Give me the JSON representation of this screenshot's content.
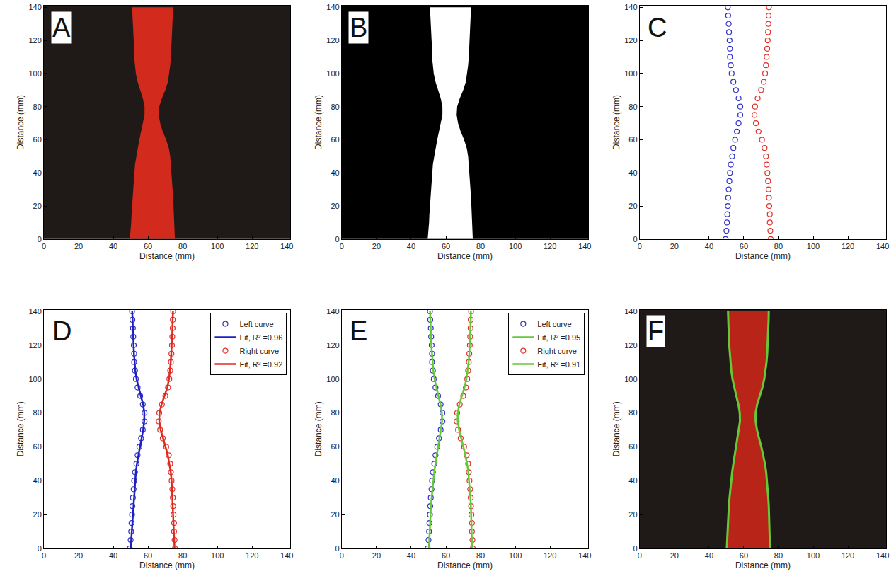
{
  "chart_data": [
    {
      "type": "photo",
      "title": "A",
      "xlabel": "Distance (mm)",
      "ylabel": "Distance (mm)",
      "xlim": [
        0,
        142
      ],
      "ylim": [
        0,
        141
      ],
      "xticks": [
        0,
        20,
        40,
        60,
        80,
        100,
        120,
        140
      ],
      "yticks": [
        0,
        20,
        40,
        60,
        80,
        100,
        120,
        140
      ],
      "color": "#d22a1c",
      "y": [
        0,
        5,
        10,
        15,
        20,
        25,
        30,
        35,
        40,
        45,
        50,
        55,
        60,
        65,
        70,
        75,
        80,
        85,
        90,
        95,
        100,
        105,
        110,
        115,
        120,
        125,
        130,
        135,
        140
      ],
      "series": [
        {
          "values": [
            49.5,
            50,
            50.3,
            50.5,
            50.8,
            51,
            51.3,
            51.7,
            52,
            52.5,
            53.3,
            54,
            55,
            56,
            57,
            58,
            58,
            57,
            55.5,
            54,
            53,
            52.5,
            52,
            52,
            51.8,
            51.5,
            51.3,
            51,
            50.8
          ]
        },
        {
          "values": [
            75.5,
            75.3,
            75,
            75,
            74.7,
            74.5,
            74.3,
            74,
            73.6,
            73.2,
            72.8,
            72,
            70.5,
            68.5,
            67,
            66.2,
            66.5,
            68,
            70,
            71.5,
            72.3,
            72.8,
            73.2,
            73.5,
            73.8,
            74,
            74.2,
            74.3,
            74.5
          ]
        }
      ]
    },
    {
      "type": "mask",
      "title": "B",
      "xlabel": "Distance (mm)",
      "ylabel": "Distance (mm)",
      "xlim": [
        0,
        142
      ],
      "ylim": [
        0,
        141
      ],
      "xticks": [
        0,
        20,
        40,
        60,
        80,
        100,
        120,
        140
      ],
      "yticks": [
        0,
        20,
        40,
        60,
        80,
        100,
        120,
        140
      ],
      "color": "#ffffff",
      "y": [
        0,
        5,
        10,
        15,
        20,
        25,
        30,
        35,
        40,
        45,
        50,
        55,
        60,
        65,
        70,
        75,
        80,
        85,
        90,
        95,
        100,
        105,
        110,
        115,
        120,
        125,
        130,
        135,
        140
      ],
      "series": [
        {
          "values": [
            49.5,
            50,
            50.3,
            50.5,
            50.8,
            51,
            51.3,
            51.7,
            52,
            52.5,
            53.3,
            54,
            55,
            56,
            57,
            58,
            58,
            57,
            55.5,
            54,
            53,
            52.5,
            52,
            52,
            51.8,
            51.5,
            51.3,
            51,
            50.8
          ]
        },
        {
          "values": [
            75.5,
            75.3,
            75,
            75,
            74.7,
            74.5,
            74.3,
            74,
            73.6,
            73.2,
            72.8,
            72,
            70.5,
            68.5,
            67,
            66.2,
            66.5,
            68,
            70,
            71.5,
            72.3,
            72.8,
            73.2,
            73.5,
            73.8,
            74,
            74.2,
            74.3,
            74.5
          ]
        }
      ]
    },
    {
      "type": "scatter",
      "title": "C",
      "xlabel": "Distance (mm)",
      "ylabel": "Distance (mm)",
      "xlim": [
        0,
        142
      ],
      "ylim": [
        0,
        141
      ],
      "xticks": [
        0,
        20,
        40,
        60,
        80,
        100,
        120,
        140
      ],
      "yticks": [
        0,
        20,
        40,
        60,
        80,
        100,
        120,
        140
      ],
      "y": [
        0,
        5,
        10,
        15,
        20,
        25,
        30,
        35,
        40,
        45,
        50,
        55,
        60,
        65,
        70,
        75,
        80,
        85,
        90,
        95,
        100,
        105,
        110,
        115,
        120,
        125,
        130,
        135,
        140
      ],
      "series": [
        {
          "color": "#3030c8",
          "marker": "circle-open",
          "values": [
            49.5,
            50,
            50.3,
            50.5,
            50.8,
            51,
            51.3,
            51.7,
            52,
            52.5,
            53.3,
            54,
            55,
            56,
            57,
            58,
            58,
            57,
            55.5,
            54,
            53,
            52.5,
            52,
            52,
            51.8,
            51.5,
            51.3,
            51,
            50.8
          ]
        },
        {
          "color": "#e0302a",
          "marker": "circle-open",
          "values": [
            75.5,
            75.3,
            75,
            75,
            74.7,
            74.5,
            74.3,
            74,
            73.6,
            73.2,
            72.8,
            72,
            70.5,
            68.5,
            67,
            66.2,
            66.5,
            68,
            70,
            71.5,
            72.3,
            72.8,
            73.2,
            73.5,
            73.8,
            74,
            74.2,
            74.3,
            74.5
          ]
        }
      ]
    },
    {
      "type": "scatter",
      "title": "D",
      "xlabel": "Distance (mm)",
      "ylabel": "Distance (mm)",
      "xlim": [
        0,
        142
      ],
      "ylim": [
        0,
        141
      ],
      "xticks": [
        0,
        20,
        40,
        60,
        80,
        100,
        120,
        140
      ],
      "yticks": [
        0,
        20,
        40,
        60,
        80,
        100,
        120,
        140
      ],
      "legend": "top right",
      "y": [
        0,
        5,
        10,
        15,
        20,
        25,
        30,
        35,
        40,
        45,
        50,
        55,
        60,
        65,
        70,
        75,
        80,
        85,
        90,
        95,
        100,
        105,
        110,
        115,
        120,
        125,
        130,
        135,
        140
      ],
      "series": [
        {
          "name": "Left curve",
          "color": "#3030c8",
          "marker": "circle-open",
          "values": [
            49.5,
            50,
            50.3,
            50.5,
            50.8,
            51,
            51.3,
            51.7,
            52,
            52.5,
            53.3,
            54,
            55,
            56,
            57,
            58,
            58,
            57,
            55.5,
            54,
            53,
            52.5,
            52,
            52,
            51.8,
            51.5,
            51.3,
            51,
            50.8
          ]
        },
        {
          "name": "Fit, R² =0.96",
          "color": "#2020c0",
          "line_style": "solid",
          "values": [
            50,
            50.3,
            50.6,
            50.9,
            51.2,
            51.5,
            51.8,
            52.1,
            52.5,
            53,
            53.6,
            54.4,
            55.3,
            56.3,
            57.2,
            57.8,
            57.9,
            57.2,
            55.9,
            54.5,
            53.4,
            52.7,
            52.2,
            51.9,
            51.7,
            51.5,
            51.3,
            51.1,
            50.9
          ]
        },
        {
          "name": "Right curve",
          "color": "#e0302a",
          "marker": "circle-open",
          "values": [
            75.5,
            75.3,
            75,
            75,
            74.7,
            74.5,
            74.3,
            74,
            73.6,
            73.2,
            72.8,
            72,
            70.5,
            68.5,
            67,
            66.2,
            66.5,
            68,
            70,
            71.5,
            72.3,
            72.8,
            73.2,
            73.5,
            73.8,
            74,
            74.2,
            74.3,
            74.5
          ]
        },
        {
          "name": "Fit, R² =0.92",
          "color": "#e02a20",
          "line_style": "solid",
          "values": [
            75.3,
            75.1,
            75,
            74.9,
            74.7,
            74.5,
            74.3,
            74,
            73.6,
            73.1,
            72.4,
            71.4,
            70.1,
            68.6,
            67.3,
            66.5,
            66.6,
            67.8,
            69.6,
            71.1,
            72.1,
            72.7,
            73.1,
            73.4,
            73.7,
            73.9,
            74.1,
            74.2,
            74.4
          ]
        }
      ]
    },
    {
      "type": "scatter",
      "title": "E",
      "xlabel": "Distance (mm)",
      "ylabel": "Distance (mm)",
      "xlim": [
        0,
        142
      ],
      "ylim": [
        0,
        141
      ],
      "xticks": [
        0,
        20,
        40,
        60,
        80,
        100,
        120,
        140
      ],
      "yticks": [
        0,
        20,
        40,
        60,
        80,
        100,
        120,
        140
      ],
      "legend": "top right",
      "y": [
        0,
        5,
        10,
        15,
        20,
        25,
        30,
        35,
        40,
        45,
        50,
        55,
        60,
        65,
        70,
        75,
        80,
        85,
        90,
        95,
        100,
        105,
        110,
        115,
        120,
        125,
        130,
        135,
        140
      ],
      "series": [
        {
          "name": "Left curve",
          "color": "#3030c8",
          "marker": "circle-open",
          "values": [
            49.5,
            50,
            50.3,
            50.5,
            50.8,
            51,
            51.3,
            51.7,
            52,
            52.5,
            53.3,
            54,
            55,
            56,
            57,
            58,
            58,
            57,
            55.5,
            54,
            53,
            52.5,
            52,
            52,
            51.8,
            51.5,
            51.3,
            51,
            50.8
          ]
        },
        {
          "name": "Fit, R² =0.95",
          "color": "#66c836",
          "line_style": "solid",
          "values": [
            50.2,
            50.4,
            50.6,
            50.8,
            51.1,
            51.4,
            51.8,
            52.2,
            52.7,
            53.3,
            54,
            54.8,
            55.6,
            56.5,
            57.3,
            57.8,
            57.7,
            56.9,
            55.7,
            54.5,
            53.5,
            52.8,
            52.3,
            51.9,
            51.6,
            51.4,
            51.2,
            51,
            50.9
          ]
        },
        {
          "name": "Right curve",
          "color": "#e0302a",
          "marker": "circle-open",
          "values": [
            75.5,
            75.3,
            75,
            75,
            74.7,
            74.5,
            74.3,
            74,
            73.6,
            73.2,
            72.8,
            72,
            70.5,
            68.5,
            67,
            66.2,
            66.5,
            68,
            70,
            71.5,
            72.3,
            72.8,
            73.2,
            73.5,
            73.8,
            74,
            74.2,
            74.3,
            74.5
          ]
        },
        {
          "name": "Fit, R² =0.91",
          "color": "#66c836",
          "line_style": "solid",
          "values": [
            75.1,
            75,
            74.9,
            74.8,
            74.6,
            74.4,
            74.1,
            73.8,
            73.4,
            72.9,
            72.2,
            71.3,
            70.1,
            68.8,
            67.6,
            66.8,
            66.8,
            67.7,
            69.2,
            70.7,
            71.8,
            72.6,
            73.1,
            73.5,
            73.8,
            74,
            74.1,
            74.3,
            74.4
          ]
        }
      ]
    },
    {
      "type": "photo",
      "title": "F",
      "xlabel": "Distance (mm)",
      "ylabel": "Distance (mm)",
      "xlim": [
        0,
        142
      ],
      "ylim": [
        0,
        141
      ],
      "xticks": [
        0,
        20,
        40,
        60,
        80,
        100,
        120,
        140
      ],
      "yticks": [
        0,
        20,
        40,
        60,
        80,
        100,
        120,
        140
      ],
      "color": "#b82418",
      "y": [
        0,
        5,
        10,
        15,
        20,
        25,
        30,
        35,
        40,
        45,
        50,
        55,
        60,
        65,
        70,
        75,
        80,
        85,
        90,
        95,
        100,
        105,
        110,
        115,
        120,
        125,
        130,
        135,
        140
      ],
      "series": [
        {
          "color": "#66c836",
          "line_style": "solid",
          "values": [
            50.2,
            50.4,
            50.6,
            50.8,
            51.1,
            51.4,
            51.8,
            52.2,
            52.7,
            53.3,
            54,
            54.8,
            55.6,
            56.5,
            57.3,
            57.8,
            57.7,
            56.9,
            55.7,
            54.5,
            53.5,
            52.8,
            52.3,
            51.9,
            51.6,
            51.4,
            51.2,
            51,
            50.9
          ]
        },
        {
          "color": "#66c836",
          "line_style": "solid",
          "values": [
            75.1,
            75,
            74.9,
            74.8,
            74.6,
            74.4,
            74.1,
            73.8,
            73.4,
            72.9,
            72.2,
            71.3,
            70.1,
            68.8,
            67.6,
            66.8,
            66.8,
            67.7,
            69.2,
            70.7,
            71.8,
            72.6,
            73.1,
            73.5,
            73.8,
            74,
            74.1,
            74.3,
            74.4
          ]
        }
      ]
    }
  ]
}
